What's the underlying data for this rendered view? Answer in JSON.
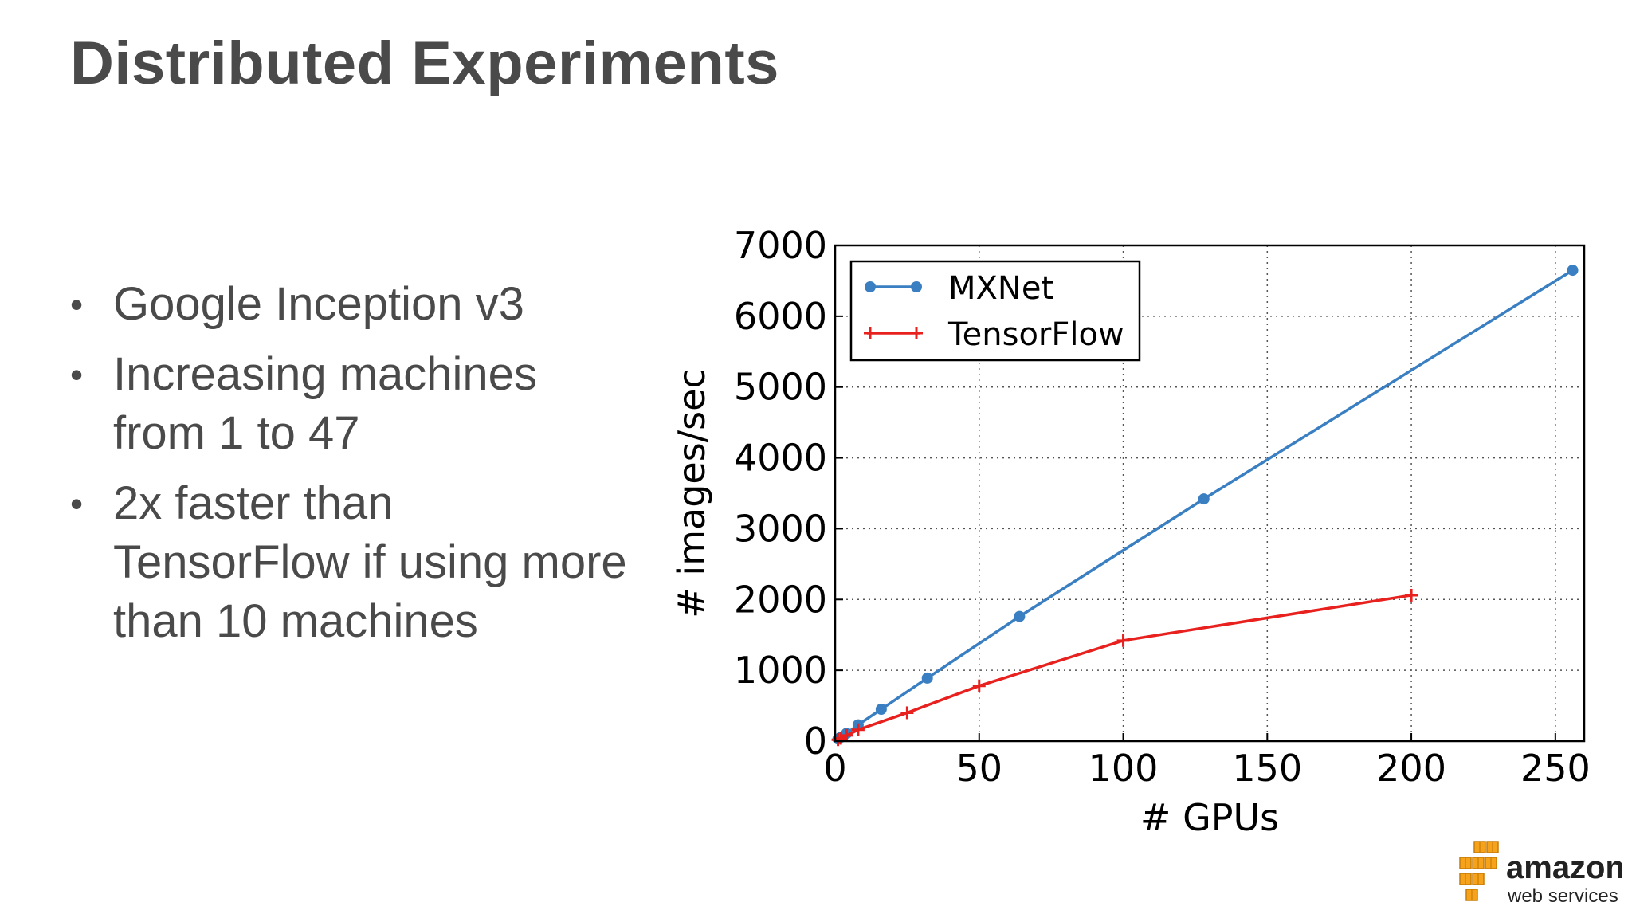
{
  "slide": {
    "title": "Distributed Experiments",
    "bullets": [
      "Google Inception v3",
      "Increasing machines from 1 to 47",
      "2x faster than TensorFlow if using more than 10 machines"
    ]
  },
  "logo": {
    "line1": "amazon",
    "line2": "web services",
    "color_cubes": "#f7a21b",
    "color_text": "#222222"
  },
  "chart_data": {
    "type": "line",
    "title": "",
    "xlabel": "# GPUs",
    "ylabel": "# images/sec",
    "xlim": [
      0,
      260
    ],
    "ylim": [
      0,
      7000
    ],
    "xticks": [
      0,
      50,
      100,
      150,
      200,
      250
    ],
    "yticks": [
      0,
      1000,
      2000,
      3000,
      4000,
      5000,
      6000,
      7000
    ],
    "grid": true,
    "legend_position": "top-left",
    "series": [
      {
        "name": "MXNet",
        "color": "#3a7fc1",
        "marker": "circle",
        "x": [
          1,
          2,
          4,
          8,
          16,
          32,
          64,
          128,
          256
        ],
        "y": [
          30,
          55,
          110,
          230,
          450,
          890,
          1760,
          3420,
          6650
        ]
      },
      {
        "name": "TensorFlow",
        "color": "#e8201e",
        "marker": "plus",
        "x": [
          1,
          2,
          4,
          8,
          25,
          50,
          100,
          200
        ],
        "y": [
          20,
          40,
          80,
          160,
          400,
          780,
          1420,
          2060
        ]
      }
    ]
  }
}
